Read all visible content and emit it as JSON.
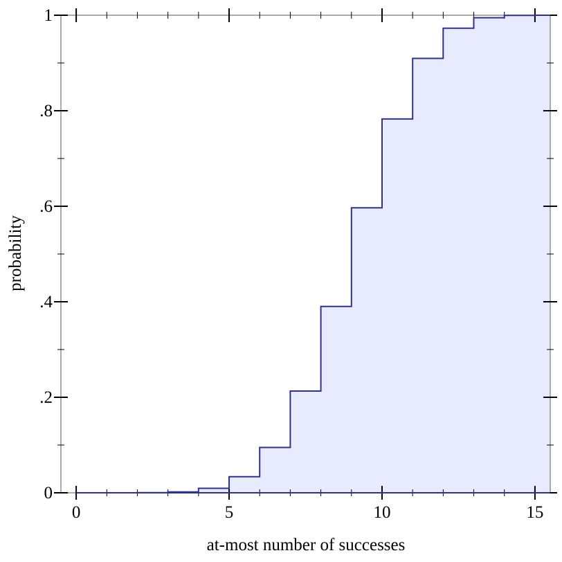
{
  "chart_data": {
    "type": "area",
    "subtype": "step",
    "title": "",
    "xlabel": "at-most number of successes",
    "ylabel": "probability",
    "xlim": [
      -0.5,
      15.5
    ],
    "ylim": [
      0,
      1
    ],
    "x_ticks": [
      0,
      5,
      10,
      15
    ],
    "x_tick_labels": [
      "0",
      "5",
      "10",
      "15"
    ],
    "y_ticks": [
      0,
      0.2,
      0.4,
      0.6,
      0.8,
      1
    ],
    "y_tick_labels": [
      "0",
      ".2",
      ".4",
      ".6",
      ".8",
      "1"
    ],
    "grid": false,
    "series": [
      {
        "x": [
          0,
          1,
          2,
          3,
          4,
          5,
          6,
          7,
          8,
          9,
          10,
          11,
          12,
          13,
          14,
          15
        ],
        "values": [
          1e-06,
          2.5e-05,
          0.00028,
          0.0019,
          0.0094,
          0.0338,
          0.095,
          0.2131,
          0.3902,
          0.5968,
          0.7827,
          0.9095,
          0.9729,
          0.9948,
          0.9995,
          1.0
        ]
      }
    ],
    "colors": {
      "line": "#2e3192",
      "fill": "#e8ebfd",
      "frame": "#808080"
    }
  }
}
